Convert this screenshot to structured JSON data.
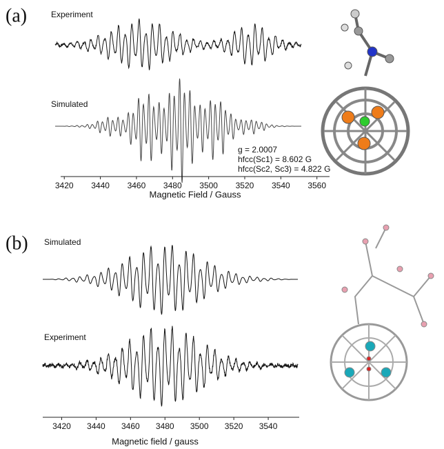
{
  "panels": [
    {
      "label": "(a)",
      "traces": [
        "Experiment",
        "Simulated"
      ],
      "annotations": [
        "g = 2.0007",
        "hfcc(Sc1) = 8.602 G",
        "hfcc(Sc2, Sc3) = 4.822 G"
      ],
      "x_label": "Magnetic Field / Gauss",
      "xlim": [
        3418,
        3567
      ],
      "xticks": [
        3420,
        3440,
        3460,
        3480,
        3500,
        3520,
        3540,
        3560
      ]
    },
    {
      "label": "(b)",
      "traces": [
        "Simulated",
        "Experiment"
      ],
      "x_label": "Magnetic field / gauss",
      "xlim": [
        3409,
        3558
      ],
      "xticks": [
        3420,
        3440,
        3460,
        3480,
        3500,
        3520,
        3540
      ]
    }
  ]
}
